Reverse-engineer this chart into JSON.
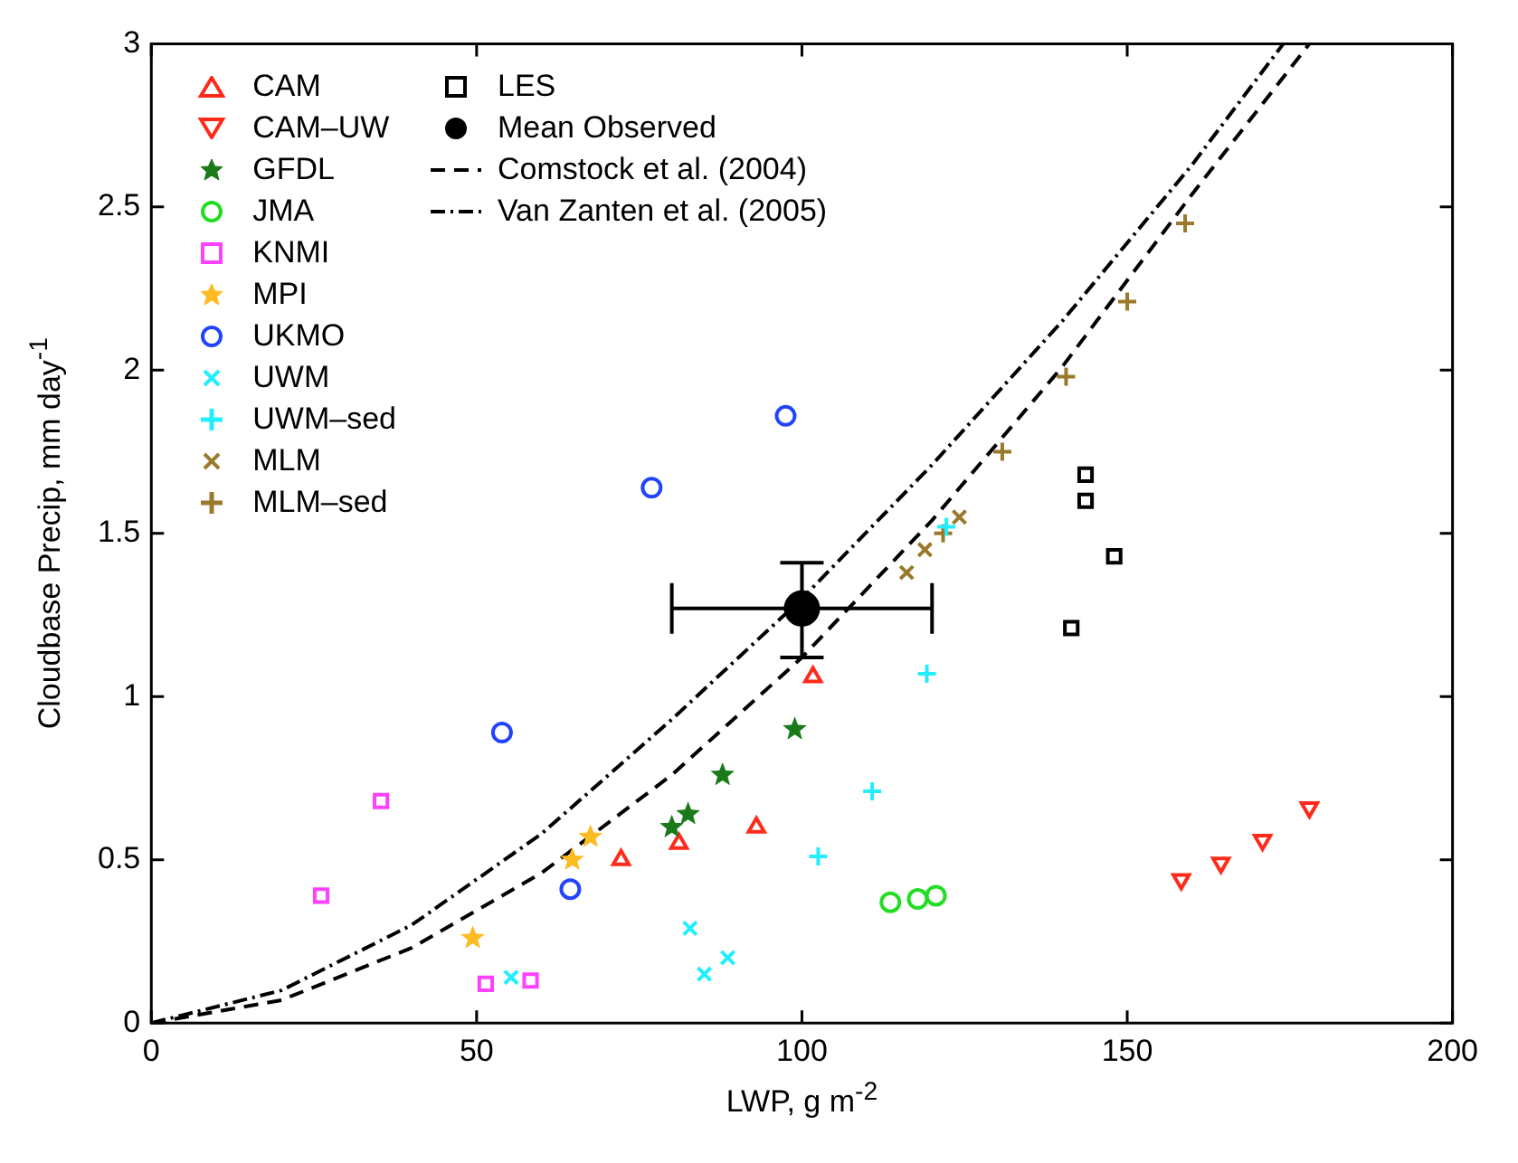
{
  "chart_data": {
    "type": "scatter",
    "xlabel": "LWP, g m$^{-2}$",
    "ylabel": "Cloudbase Precip, mm day$^{-1}$",
    "xlim": [
      0,
      200
    ],
    "xticks": [
      0,
      50,
      100,
      150,
      200
    ],
    "ylim": [
      0,
      3
    ],
    "yticks": [
      0,
      0.5,
      1,
      1.5,
      2,
      2.5,
      3
    ],
    "grid": false,
    "legend": "top left",
    "series": [
      {
        "name": "CAM",
        "color": "#ff2a1a",
        "marker": "triangle",
        "x": [
          72.2,
          81.1,
          93,
          101.7
        ],
        "values": [
          0.5,
          0.55,
          0.6,
          1.06
        ]
      },
      {
        "name": "CAM–UW",
        "color": "#ff2a1a",
        "marker": "triangle-down",
        "x": [
          158.3,
          164.4,
          170.8,
          178
        ],
        "values": [
          0.44,
          0.49,
          0.56,
          0.66
        ]
      },
      {
        "name": "GFDL",
        "color": "#1a7a1a",
        "marker": "star",
        "x": [
          80,
          82.5,
          87.8,
          98.9
        ],
        "values": [
          0.6,
          0.64,
          0.76,
          0.9
        ]
      },
      {
        "name": "JMA",
        "color": "#22dd22",
        "marker": "circle",
        "x": [
          113.6,
          117.8,
          120.6
        ],
        "values": [
          0.37,
          0.38,
          0.39
        ]
      },
      {
        "name": "KNMI",
        "color": "#ff40ff",
        "marker": "square",
        "x": [
          26.1,
          35.3,
          51.4,
          58.3
        ],
        "values": [
          0.39,
          0.68,
          0.12,
          0.13
        ]
      },
      {
        "name": "MPI",
        "color": "#ffbb22",
        "marker": "star",
        "x": [
          49.4,
          64.7,
          67.5
        ],
        "values": [
          0.26,
          0.5,
          0.57
        ]
      },
      {
        "name": "UKMO",
        "color": "#2244ff",
        "marker": "circle",
        "x": [
          53.9,
          64.4,
          76.9,
          97.5
        ],
        "values": [
          0.89,
          0.41,
          1.64,
          1.86
        ]
      },
      {
        "name": "UWM",
        "color": "#22eeff",
        "marker": "x",
        "x": [
          55.3,
          82.8,
          85,
          88.6
        ],
        "values": [
          0.14,
          0.29,
          0.15,
          0.2
        ]
      },
      {
        "name": "UWM–sed",
        "color": "#22eeff",
        "marker": "cross",
        "x": [
          102.5,
          110.8,
          119.2,
          122.2
        ],
        "values": [
          0.51,
          0.71,
          1.07,
          1.52
        ]
      },
      {
        "name": "MLM",
        "color": "#9a7a2a",
        "marker": "x",
        "x": [
          116.1,
          118.9,
          124.2
        ],
        "values": [
          1.38,
          1.45,
          1.55
        ]
      },
      {
        "name": "MLM–sed",
        "color": "#9a7a2a",
        "marker": "cross",
        "x": [
          121.7,
          130.8,
          140.6,
          150,
          158.9
        ],
        "values": [
          1.5,
          1.75,
          1.98,
          2.21,
          2.45
        ]
      },
      {
        "name": "LES",
        "color": "#000000",
        "marker": "square",
        "x": [
          143.6,
          143.6,
          148,
          141.4
        ],
        "values": [
          1.68,
          1.6,
          1.43,
          1.21
        ]
      },
      {
        "name": "Mean Observed",
        "color": "#000000",
        "marker": "circle",
        "x": [
          100
        ],
        "values": [
          1.27
        ],
        "errors": [
          [
            1.12,
            1.41
          ]
        ],
        "xerrors": [
          [
            80,
            120
          ]
        ]
      },
      {
        "name": "Comstock et al. (2004)",
        "type": "line",
        "color": "#000000",
        "marker": "none",
        "line_style": "dashed",
        "x": [
          0,
          20,
          40,
          60,
          80,
          100,
          120,
          140,
          160,
          178
        ],
        "values": [
          0,
          0.07,
          0.23,
          0.46,
          0.76,
          1.12,
          1.54,
          2.01,
          2.54,
          3.0
        ]
      },
      {
        "name": "Van Zanten et al. (2005)",
        "type": "line",
        "color": "#000000",
        "marker": "none",
        "line_style": "dashdot",
        "x": [
          0,
          20,
          40,
          60,
          80,
          100,
          120,
          140,
          160,
          174
        ],
        "values": [
          0,
          0.1,
          0.3,
          0.58,
          0.93,
          1.3,
          1.71,
          2.15,
          2.63,
          3.0
        ]
      }
    ]
  }
}
